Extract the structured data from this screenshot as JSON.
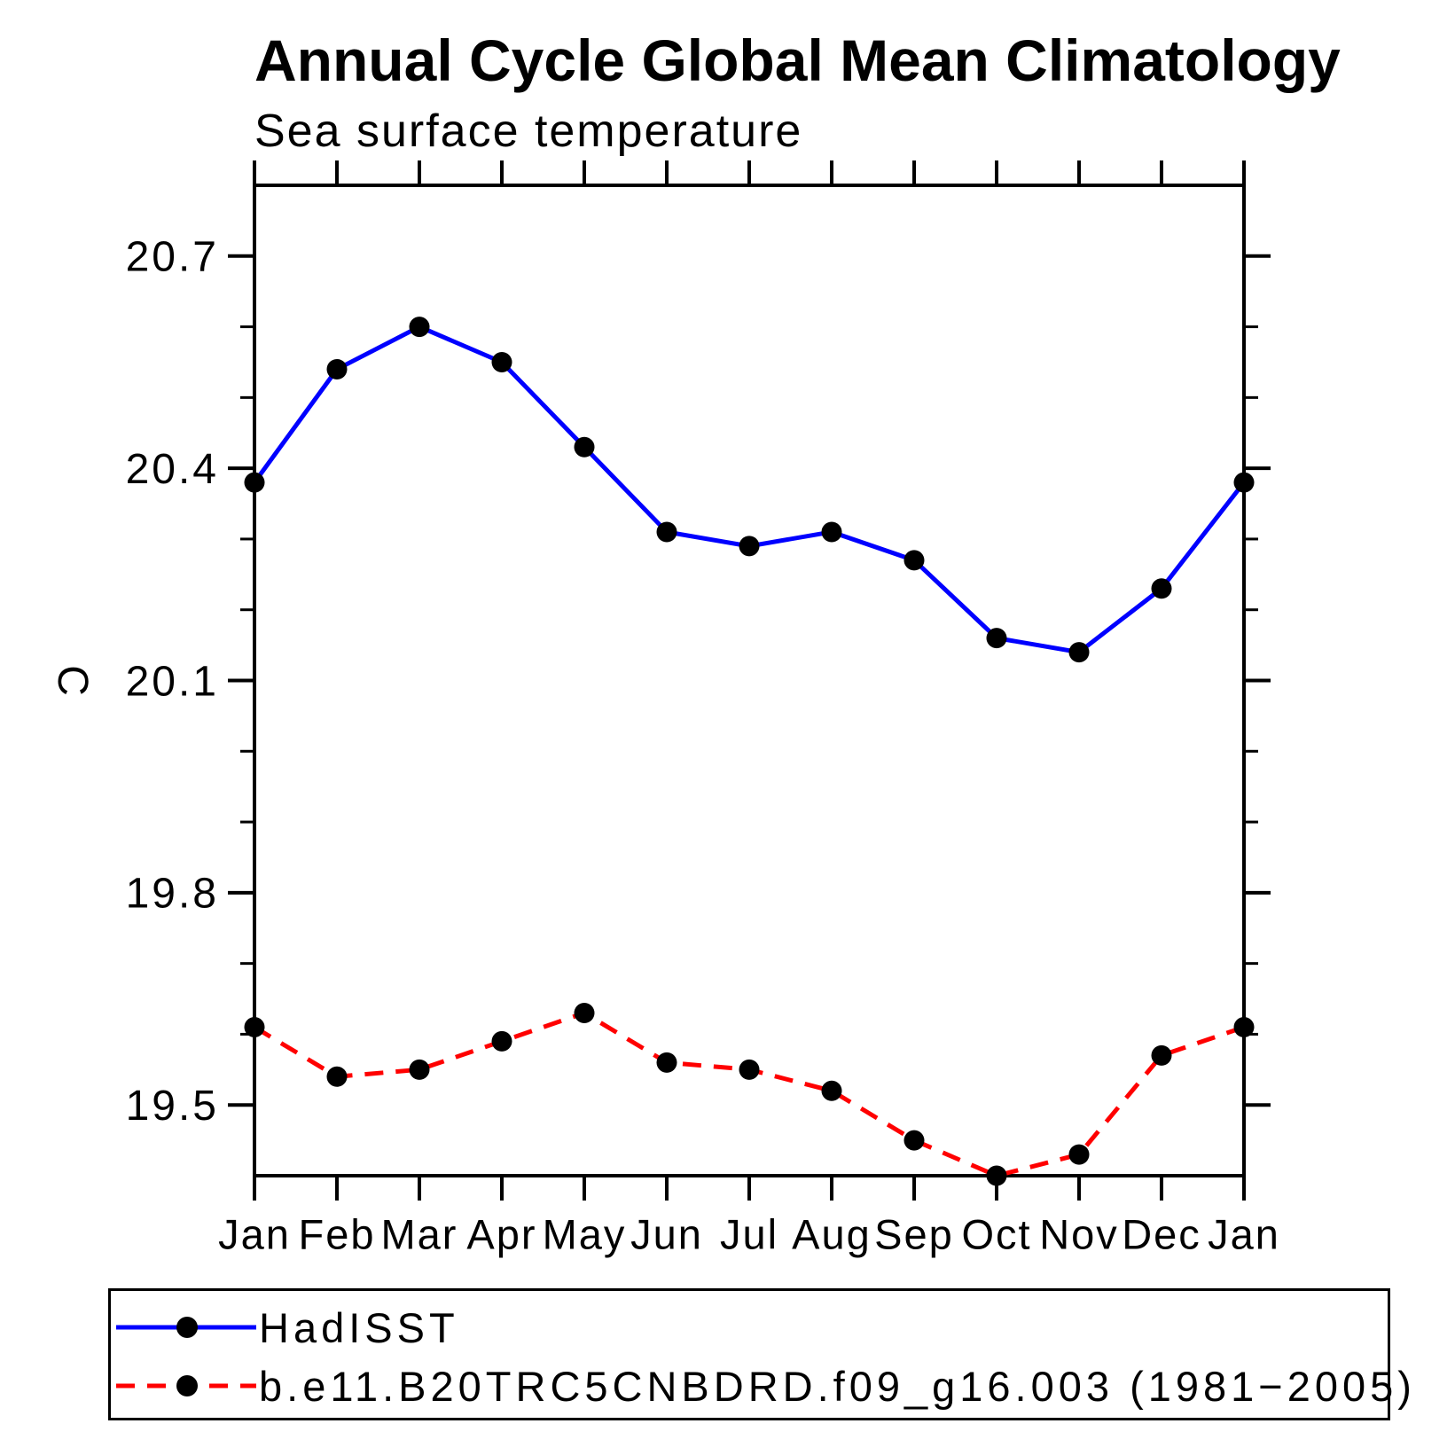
{
  "title": "Annual Cycle Global Mean Climatology",
  "subtitle": "Sea surface temperature",
  "chart_data": {
    "type": "line",
    "x_categories": [
      "Jan",
      "Feb",
      "Mar",
      "Apr",
      "May",
      "Jun",
      "Jul",
      "Aug",
      "Sep",
      "Oct",
      "Nov",
      "Dec",
      "Jan"
    ],
    "ylabel": "C",
    "ylim": [
      19.4,
      20.8
    ],
    "yticks_major": [
      19.5,
      19.8,
      20.1,
      20.4,
      20.7
    ],
    "ytick_minor_step": 0.1,
    "grid": false,
    "legend_position": "bottom-outside",
    "marker": "filled-circle",
    "marker_color": "#000000",
    "series": [
      {
        "name": "HadISST",
        "color": "#0000ff",
        "line_style": "solid",
        "values": [
          20.38,
          20.54,
          20.6,
          20.55,
          20.43,
          20.31,
          20.29,
          20.31,
          20.27,
          20.16,
          20.14,
          20.23,
          20.38
        ]
      },
      {
        "name": "b.e11.B20TRC5CNBDRD.f09_g16.003 (1981−2005)",
        "color": "#ff0000",
        "line_style": "dashed",
        "values": [
          19.61,
          19.54,
          19.55,
          19.59,
          19.63,
          19.56,
          19.55,
          19.52,
          19.45,
          19.4,
          19.43,
          19.57,
          19.61
        ]
      }
    ]
  }
}
